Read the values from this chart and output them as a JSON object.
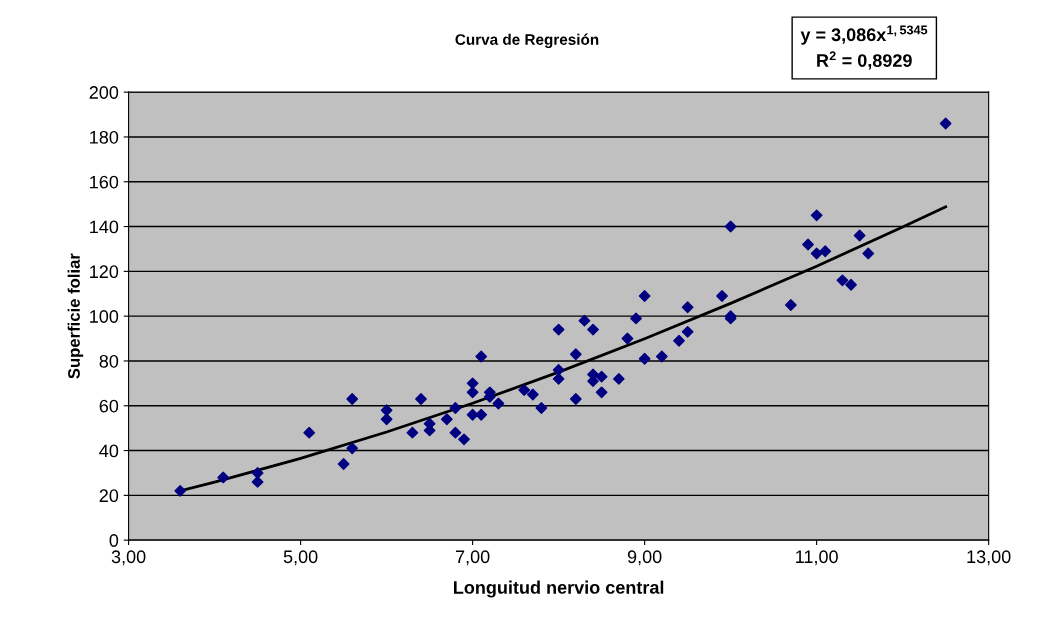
{
  "chart_data": {
    "type": "scatter",
    "title": "Curva de Regresión",
    "xlabel": "Longuitud nervio central",
    "ylabel": "Superficie foliar",
    "xlim": [
      3,
      13
    ],
    "xticks": [
      {
        "value": 3,
        "label": "3,00"
      },
      {
        "value": 5,
        "label": "5,00"
      },
      {
        "value": 7,
        "label": "7,00"
      },
      {
        "value": 9,
        "label": "9,00"
      },
      {
        "value": 11,
        "label": "11,00"
      },
      {
        "value": 13,
        "label": "13,00"
      }
    ],
    "ylim": [
      0,
      200
    ],
    "yticks": [
      0,
      20,
      40,
      60,
      80,
      100,
      120,
      140,
      160,
      180,
      200
    ],
    "grid": "y",
    "marker": "diamond",
    "legend": false,
    "annotations": [
      "y = 3,086x$^{1,5345}$\nR$^{2}$ = 0,8929"
    ],
    "series": [
      {
        "color": "#000080",
        "x": [
          3.6,
          4.1,
          4.5,
          4.5,
          5.1,
          5.5,
          5.6,
          5.6,
          6.0,
          6.0,
          6.3,
          6.4,
          6.5,
          6.5,
          6.7,
          6.8,
          6.8,
          6.9,
          7.0,
          7.0,
          7.0,
          7.1,
          7.1,
          7.2,
          7.2,
          7.3,
          7.6,
          7.7,
          7.8,
          8.0,
          8.0,
          8.0,
          8.2,
          8.2,
          8.3,
          8.4,
          8.4,
          8.4,
          8.5,
          8.5,
          8.7,
          8.8,
          8.9,
          9.0,
          9.0,
          9.2,
          9.4,
          9.5,
          9.5,
          9.9,
          10.0,
          10.0,
          10.0,
          10.7,
          10.9,
          11.0,
          11.0,
          11.1,
          11.3,
          11.4,
          11.5,
          11.6,
          12.5
        ],
        "values": [
          22,
          28,
          30,
          26,
          48,
          34,
          63,
          41,
          58,
          54,
          48,
          63,
          52,
          49,
          54,
          59,
          48,
          45,
          70,
          66,
          56,
          82,
          56,
          64,
          66,
          61,
          67,
          65,
          59,
          94,
          76,
          72,
          83,
          63,
          98,
          94,
          74,
          71,
          73,
          66,
          72,
          90,
          99,
          109,
          81,
          82,
          89,
          104,
          93,
          109,
          140,
          100,
          99,
          105,
          132,
          145,
          128,
          129,
          116,
          114,
          136,
          128,
          186
        ]
      },
      {
        "type": "line",
        "color": "#000000",
        "marker": "none",
        "x": [
          3.6,
          4,
          5,
          6,
          7,
          8,
          9,
          10,
          11,
          12,
          12.5
        ],
        "values": [
          22.0,
          25.9,
          36.5,
          48.3,
          61.1,
          75.0,
          89.9,
          105.7,
          122.3,
          139.8,
          148.8
        ]
      }
    ]
  }
}
